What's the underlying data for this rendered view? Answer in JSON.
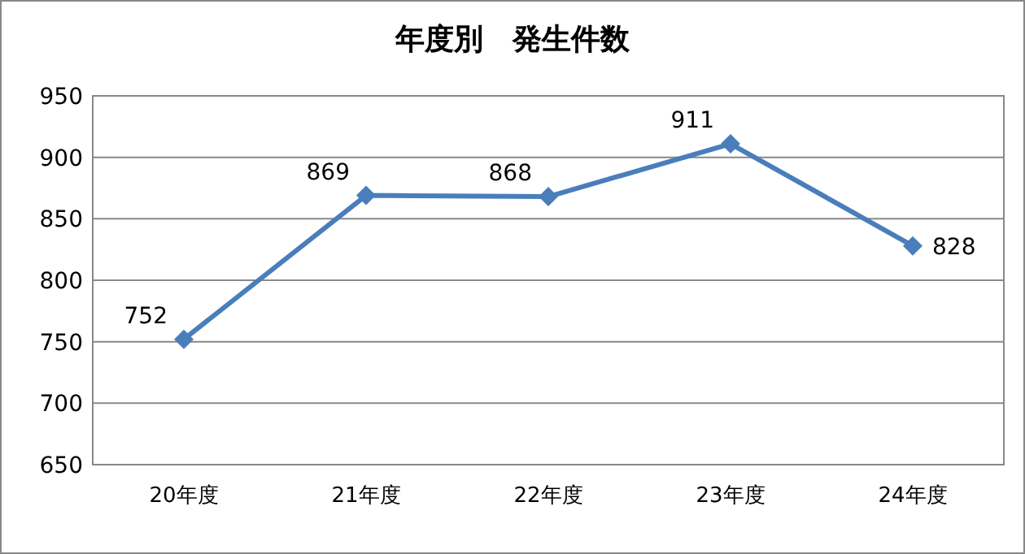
{
  "chart_data": {
    "type": "line",
    "title": "年度別　発生件数",
    "categories": [
      "20年度",
      "21年度",
      "22年度",
      "23年度",
      "24年度"
    ],
    "series": [
      {
        "color": "#4a7ebb",
        "values": [
          752,
          869,
          868,
          911,
          828
        ]
      }
    ],
    "ylim": [
      650,
      950
    ],
    "yticks": [
      650,
      700,
      750,
      800,
      850,
      900,
      950
    ],
    "grid": "y",
    "marker": "diamond",
    "line_style": "solid",
    "data_labels": true
  }
}
